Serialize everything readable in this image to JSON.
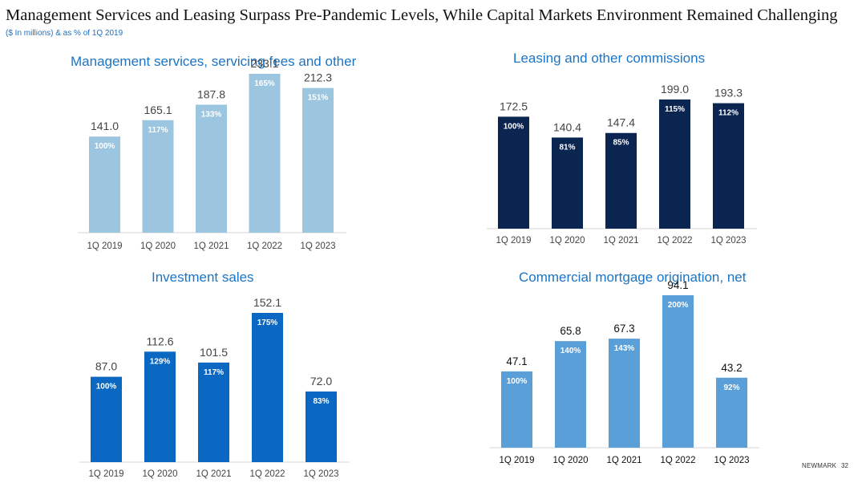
{
  "page": {
    "title": "Management Services and Leasing Surpass Pre-Pandemic Levels, While Capital Markets Environment Remained Challenging",
    "subtitle": "($ In millions) & as % of 1Q 2019",
    "brand": "NEWMARK",
    "page_number": "32"
  },
  "chart_data": [
    {
      "type": "bar",
      "title": "Management services, servicing fees and other",
      "categories": [
        "1Q 2019",
        "1Q 2020",
        "1Q 2021",
        "1Q 2022",
        "1Q 2023"
      ],
      "values": [
        141.0,
        165.1,
        187.8,
        233.1,
        212.3
      ],
      "value_labels": [
        "141.0",
        "165.1",
        "187.8",
        "233.1",
        "212.3"
      ],
      "percent_labels": [
        "100%",
        "117%",
        "133%",
        "165%",
        "151%"
      ],
      "bar_color": "#9cc6e0",
      "ylim": [
        0,
        233.1
      ]
    },
    {
      "type": "bar",
      "title": "Leasing and other commissions",
      "categories": [
        "1Q 2019",
        "1Q 2020",
        "1Q 2021",
        "1Q 2022",
        "1Q 2023"
      ],
      "values": [
        172.5,
        140.4,
        147.4,
        199.0,
        193.3
      ],
      "value_labels": [
        "172.5",
        "140.4",
        "147.4",
        "199.0",
        "193.3"
      ],
      "percent_labels": [
        "100%",
        "81%",
        "85%",
        "115%",
        "112%"
      ],
      "bar_color": "#0b2551",
      "ylim": [
        0,
        199.0
      ]
    },
    {
      "type": "bar",
      "title": "Investment sales",
      "categories": [
        "1Q 2019",
        "1Q 2020",
        "1Q 2021",
        "1Q 2022",
        "1Q 2023"
      ],
      "values": [
        87.0,
        112.6,
        101.5,
        152.1,
        72.0
      ],
      "value_labels": [
        "87.0",
        "112.6",
        "101.5",
        "152.1",
        "72.0"
      ],
      "percent_labels": [
        "100%",
        "129%",
        "117%",
        "175%",
        "83%"
      ],
      "bar_color": "#0a67c2",
      "ylim": [
        0,
        152.1
      ]
    },
    {
      "type": "bar",
      "title": "Commercial mortgage origination, net",
      "categories": [
        "1Q 2019",
        "1Q 2020",
        "1Q 2021",
        "1Q 2022",
        "1Q 2023"
      ],
      "values": [
        47.1,
        65.8,
        67.3,
        94.1,
        43.2
      ],
      "value_labels": [
        "47.1",
        "65.8",
        "67.3",
        "94.1",
        "43.2"
      ],
      "percent_labels": [
        "100%",
        "140%",
        "143%",
        "200%",
        "92%"
      ],
      "bar_color": "#5b9fd9",
      "ylim": [
        0,
        94.1
      ]
    }
  ]
}
